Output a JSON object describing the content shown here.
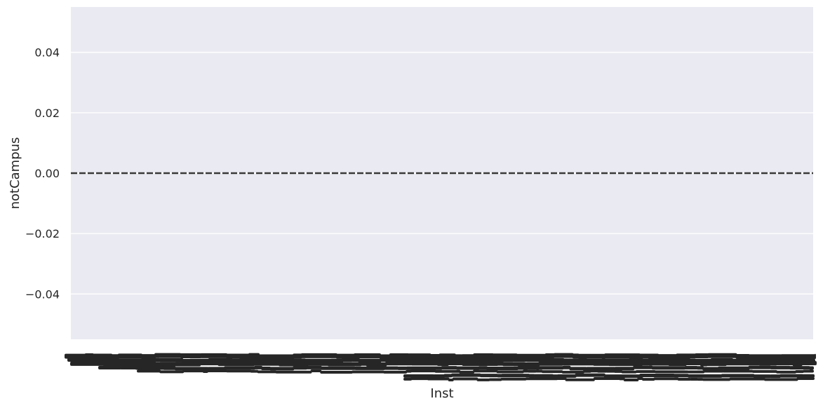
{
  "chart_data": {
    "type": "line",
    "title": "",
    "xlabel": "Inst",
    "ylabel": "notCampus",
    "ylim": [
      -0.055,
      0.055
    ],
    "yticks": [
      0.04,
      0.02,
      0.0,
      -0.02,
      -0.04
    ],
    "ytick_labels": [
      "0.04",
      "0.02",
      "0.00",
      "−0.02",
      "−0.04"
    ],
    "xtick_labels_note": "",
    "series": [
      {
        "values_constant": 0.0,
        "style": "dashed"
      }
    ],
    "grid": true,
    "background_color": "#eaeaf2",
    "grid_color": "#ffffff",
    "line_color": "#3a3a3a",
    "tick_label_color": "#262626"
  }
}
